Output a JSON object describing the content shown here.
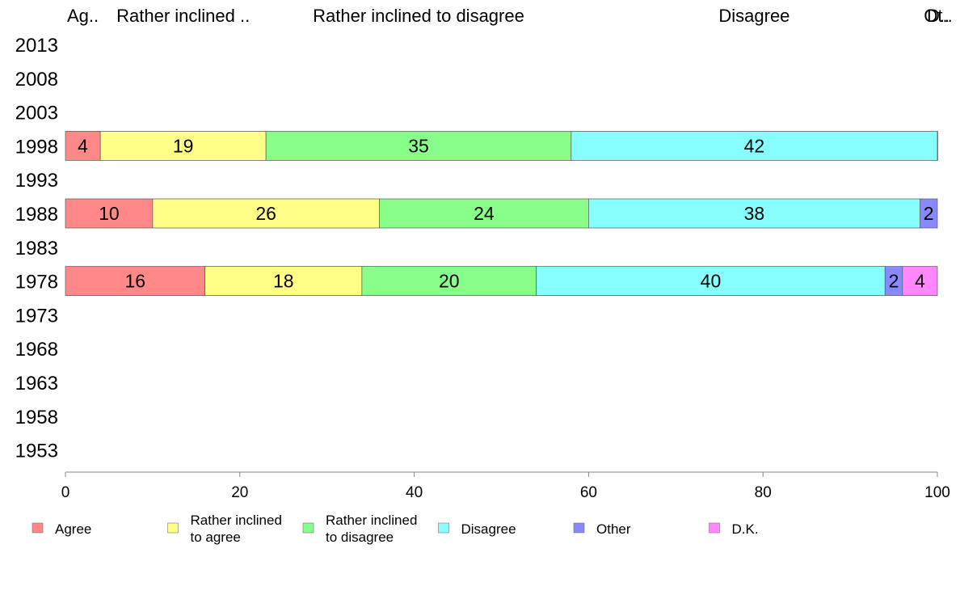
{
  "chart_data": {
    "type": "bar",
    "orientation": "horizontal",
    "stacked": true,
    "years": [
      "2013",
      "2008",
      "2003",
      "1998",
      "1993",
      "1988",
      "1983",
      "1978",
      "1973",
      "1968",
      "1963",
      "1958",
      "1953"
    ],
    "series": [
      {
        "name": "Agree",
        "legend_lines": [
          "Agree"
        ],
        "header": "Ag..",
        "color": "#ff8888",
        "values": {
          "1998": 4,
          "1988": 10,
          "1978": 16
        }
      },
      {
        "name": "Rather inclined to agree",
        "legend_lines": [
          "Rather inclined",
          "to agree"
        ],
        "header": "Rather inclined ..",
        "color": "#ffff88",
        "values": {
          "1998": 19,
          "1988": 26,
          "1978": 18
        }
      },
      {
        "name": "Rather inclined to disagree",
        "legend_lines": [
          "Rather inclined",
          "to disagree"
        ],
        "header": "Rather inclined to disagree",
        "color": "#88ff88",
        "values": {
          "1998": 35,
          "1988": 24,
          "1978": 20
        }
      },
      {
        "name": "Disagree",
        "legend_lines": [
          "Disagree"
        ],
        "header": "Disagree",
        "color": "#88ffff",
        "values": {
          "1998": 42,
          "1988": 38,
          "1978": 40
        }
      },
      {
        "name": "Other",
        "legend_lines": [
          "Other"
        ],
        "header": "",
        "color": "#8888ff",
        "values": {
          "1998": 0.4,
          "1988": 2,
          "1978": 2
        }
      },
      {
        "name": "D.K.",
        "legend_lines": [
          "D.K."
        ],
        "header": "",
        "color": "#ff88ff",
        "values": {
          "1998": 0,
          "1988": 0,
          "1978": 4
        }
      }
    ],
    "segment_labels": {
      "1998": [
        "4",
        "19",
        "35",
        "42",
        "",
        ""
      ],
      "1988": [
        "10",
        "26",
        "24",
        "38",
        "2",
        ""
      ],
      "1978": [
        "16",
        "18",
        "20",
        "40",
        "2",
        "4"
      ]
    },
    "header_overlap": [
      "D..",
      "Ot.."
    ],
    "xlim": [
      0,
      100
    ],
    "xticks": [
      0,
      20,
      40,
      60,
      80,
      100
    ],
    "xtick_labels": [
      "0",
      "20",
      "40",
      "60",
      "80",
      "100"
    ],
    "grid": false,
    "legend_position": "bottom"
  }
}
